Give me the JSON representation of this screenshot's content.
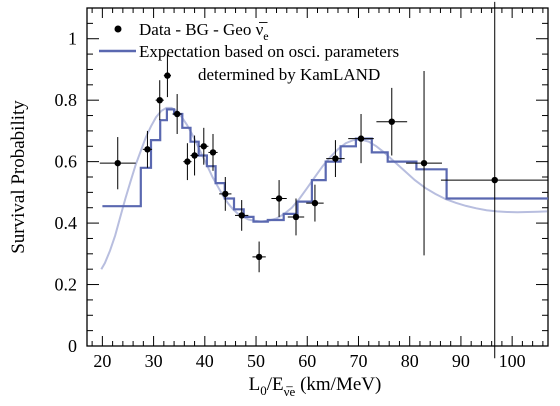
{
  "chart_data": {
    "type": "scatter",
    "xlabel": "L0/E (km/MeV)",
    "ylabel": "Survival Probability",
    "xlabel_parts": {
      "main": "L",
      "sub1": "0",
      "slash": "/E",
      "sub2": "ν̅e",
      "unit": " (km/MeV)"
    },
    "xlim": [
      17,
      107
    ],
    "ylim": [
      0,
      1.1
    ],
    "xticks": [
      20,
      30,
      40,
      50,
      60,
      70,
      80,
      90,
      100
    ],
    "yticks": [
      0,
      0.2,
      0.4,
      0.6,
      0.8,
      1
    ],
    "ytick_labels": [
      "0",
      "0.2",
      "0.4",
      "0.6",
      "0.8",
      "1"
    ],
    "legend": {
      "data_label": "Data - BG - Geo ",
      "data_label_symbol": "ν̅",
      "data_label_sub": "e",
      "expectation_label_line1": "Expectation based on osci. parameters",
      "expectation_label_line2": "determined by KamLAND"
    },
    "colors": {
      "expectation": "#5a68b0",
      "oscillation_curve": "#b8bedf",
      "data": "#000000"
    },
    "series": [
      {
        "name": "Data - BG - Geo ν̅e",
        "type": "points_with_errors",
        "points": [
          {
            "x": 23.0,
            "y": 0.595,
            "xerr": 3.5,
            "yerr": 0.085
          },
          {
            "x": 28.8,
            "y": 0.64,
            "xerr": 0.9,
            "yerr": 0.06
          },
          {
            "x": 31.2,
            "y": 0.8,
            "xerr": 0.8,
            "yerr": 0.065
          },
          {
            "x": 32.7,
            "y": 0.88,
            "xerr": 0.7,
            "yerr": 0.07
          },
          {
            "x": 34.6,
            "y": 0.755,
            "xerr": 0.9,
            "yerr": 0.065
          },
          {
            "x": 36.6,
            "y": 0.6,
            "xerr": 0.8,
            "yerr": 0.06
          },
          {
            "x": 38.0,
            "y": 0.62,
            "xerr": 0.8,
            "yerr": 0.065
          },
          {
            "x": 39.8,
            "y": 0.65,
            "xerr": 0.9,
            "yerr": 0.06
          },
          {
            "x": 41.6,
            "y": 0.63,
            "xerr": 0.9,
            "yerr": 0.06
          },
          {
            "x": 44.0,
            "y": 0.495,
            "xerr": 1.2,
            "yerr": 0.055
          },
          {
            "x": 47.2,
            "y": 0.425,
            "xerr": 1.3,
            "yerr": 0.05
          },
          {
            "x": 50.6,
            "y": 0.29,
            "xerr": 1.3,
            "yerr": 0.05
          },
          {
            "x": 54.5,
            "y": 0.48,
            "xerr": 1.5,
            "yerr": 0.06
          },
          {
            "x": 57.8,
            "y": 0.42,
            "xerr": 1.6,
            "yerr": 0.06
          },
          {
            "x": 61.5,
            "y": 0.465,
            "xerr": 1.7,
            "yerr": 0.06
          },
          {
            "x": 65.5,
            "y": 0.61,
            "xerr": 1.8,
            "yerr": 0.06
          },
          {
            "x": 70.5,
            "y": 0.675,
            "xerr": 2.5,
            "yerr": 0.08
          },
          {
            "x": 76.5,
            "y": 0.73,
            "xerr": 3.0,
            "yerr": 0.11
          },
          {
            "x": 82.8,
            "y": 0.595,
            "xerr": 3.5,
            "yerr": 0.3
          },
          {
            "x": 96.6,
            "y": 0.54,
            "xerr": 10.5,
            "yerr": 0.58
          }
        ]
      },
      {
        "name": "Expectation based on osci. parameters determined by KamLAND",
        "type": "step",
        "edges": [
          20,
          27.5,
          29.5,
          31.3,
          32.6,
          34.0,
          35.6,
          37.2,
          38.8,
          40.4,
          42.1,
          43.9,
          45.7,
          47.6,
          49.5,
          52.3,
          55.4,
          58.1,
          60.9,
          63.6,
          66.5,
          69.5,
          72.6,
          75.7,
          81.3,
          87.2,
          107
        ],
        "values": [
          0.455,
          0.58,
          0.67,
          0.735,
          0.77,
          0.755,
          0.71,
          0.665,
          0.62,
          0.585,
          0.53,
          0.48,
          0.445,
          0.42,
          0.405,
          0.41,
          0.43,
          0.47,
          0.54,
          0.6,
          0.65,
          0.675,
          0.63,
          0.6,
          0.575,
          0.48
        ]
      },
      {
        "name": "oscillation curve",
        "type": "smooth",
        "x": [
          19.8,
          20.5,
          21.5,
          22.5,
          23.5,
          24.5,
          25.5,
          26.5,
          27.5,
          28.5,
          29.5,
          30.5,
          31.5,
          32.5,
          33.5,
          34.5,
          35.5,
          36.5,
          37.5,
          38.5,
          39.5,
          40.5,
          41.5,
          42.5,
          43.5,
          44.5,
          45.5,
          46.5,
          47.5,
          48.5,
          49.5,
          51,
          52.5,
          54,
          55.5,
          57,
          58.5,
          60,
          61.5,
          63,
          64.5,
          66,
          67.5,
          69,
          70.5,
          72,
          73.5,
          75,
          77,
          79,
          81,
          83,
          85,
          87,
          89,
          91,
          93,
          95,
          97,
          99,
          101,
          103,
          105,
          106.8
        ],
        "y": [
          0.25,
          0.27,
          0.31,
          0.36,
          0.42,
          0.48,
          0.535,
          0.59,
          0.635,
          0.68,
          0.715,
          0.745,
          0.765,
          0.775,
          0.775,
          0.765,
          0.745,
          0.72,
          0.69,
          0.655,
          0.62,
          0.585,
          0.55,
          0.52,
          0.49,
          0.465,
          0.445,
          0.43,
          0.42,
          0.412,
          0.408,
          0.405,
          0.408,
          0.415,
          0.43,
          0.45,
          0.48,
          0.515,
          0.55,
          0.585,
          0.615,
          0.64,
          0.66,
          0.67,
          0.672,
          0.665,
          0.65,
          0.63,
          0.6,
          0.57,
          0.54,
          0.515,
          0.495,
          0.478,
          0.466,
          0.456,
          0.448,
          0.442,
          0.438,
          0.436,
          0.435,
          0.436,
          0.437,
          0.438
        ]
      }
    ]
  }
}
